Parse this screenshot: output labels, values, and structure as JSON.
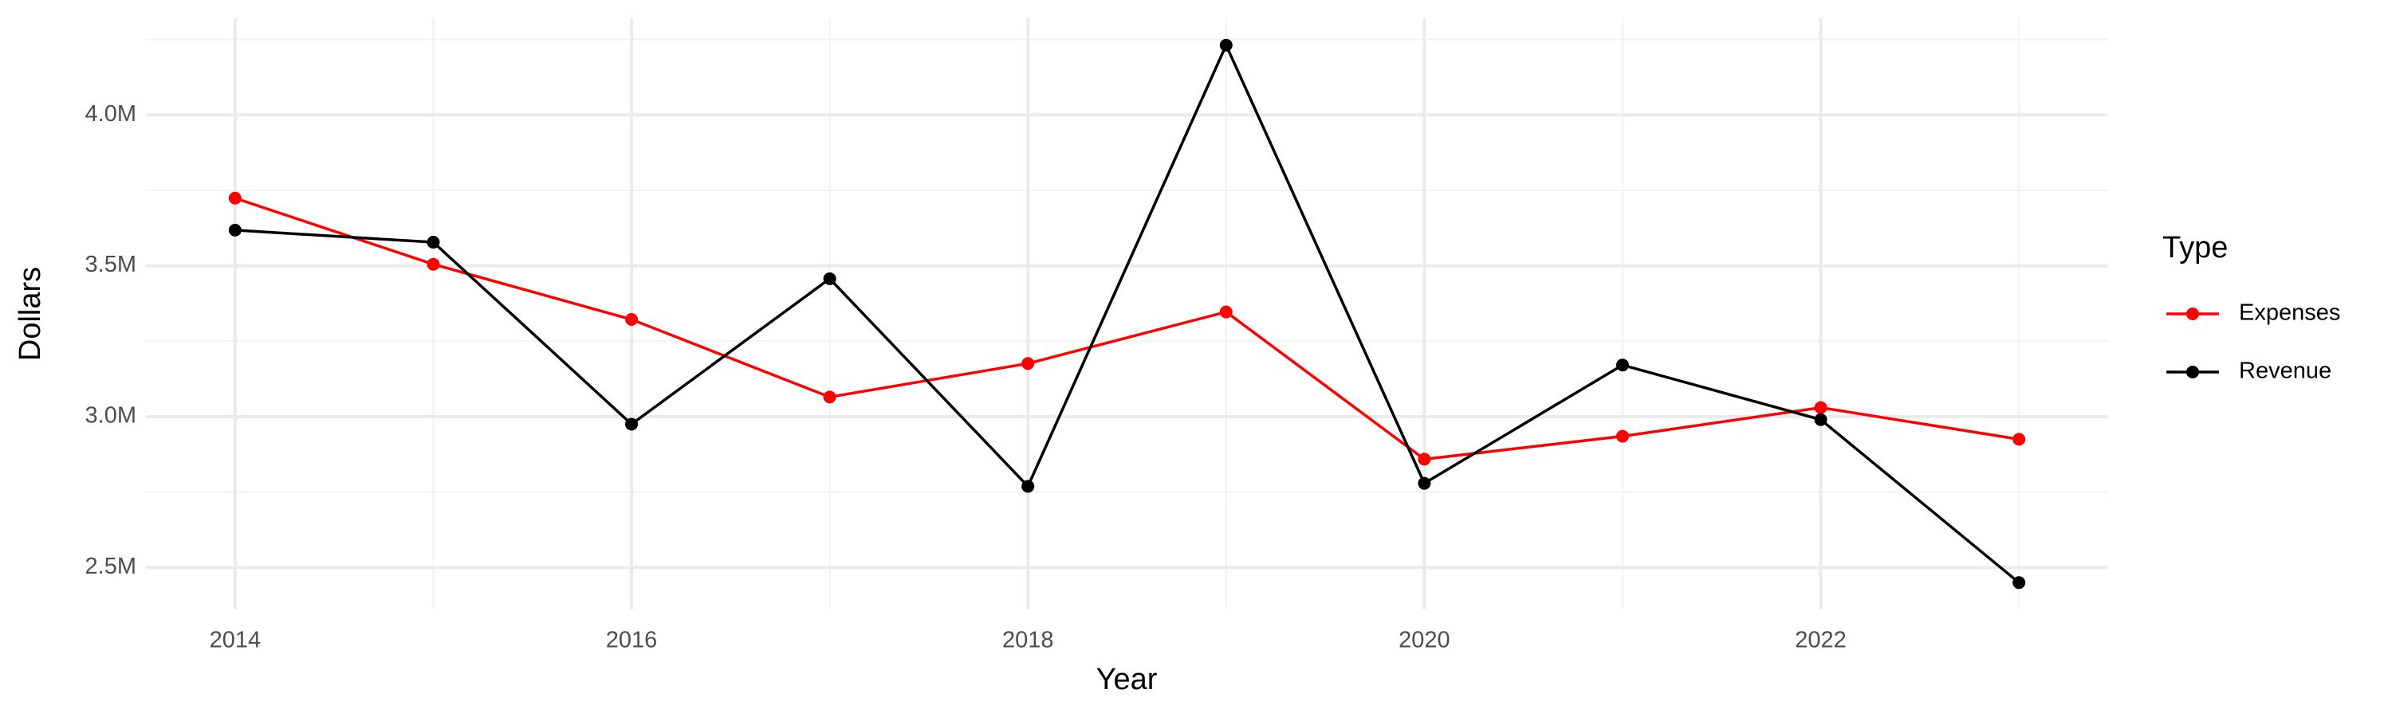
{
  "chart_data": {
    "type": "line",
    "x_label": "Year",
    "y_label": "Dollars",
    "legend_title": "Type",
    "legend_position": "right",
    "x": [
      2014,
      2015,
      2016,
      2017,
      2018,
      2019,
      2020,
      2021,
      2022,
      2023
    ],
    "series": [
      {
        "name": "Expenses",
        "color": "#ff0000",
        "values": [
          3724000,
          3505000,
          3322000,
          3065000,
          3176000,
          3347000,
          2859000,
          2935000,
          3030000,
          2925000
        ]
      },
      {
        "name": "Revenue",
        "color": "#000000",
        "values": [
          3618000,
          3578000,
          2975000,
          3457000,
          2769000,
          4231000,
          2779000,
          3171000,
          2990000,
          2450000
        ]
      }
    ],
    "xlim": [
      2013.55,
      2023.45
    ],
    "xticks": [
      2014,
      2016,
      2018,
      2020,
      2022
    ],
    "ylim": [
      2361000,
      4320000
    ],
    "yticks": [
      {
        "value": 2500000,
        "label": "2.5M"
      },
      {
        "value": 3000000,
        "label": "3.0M"
      },
      {
        "value": 3500000,
        "label": "3.5M"
      },
      {
        "value": 4000000,
        "label": "4.0M"
      }
    ],
    "grid": true
  }
}
